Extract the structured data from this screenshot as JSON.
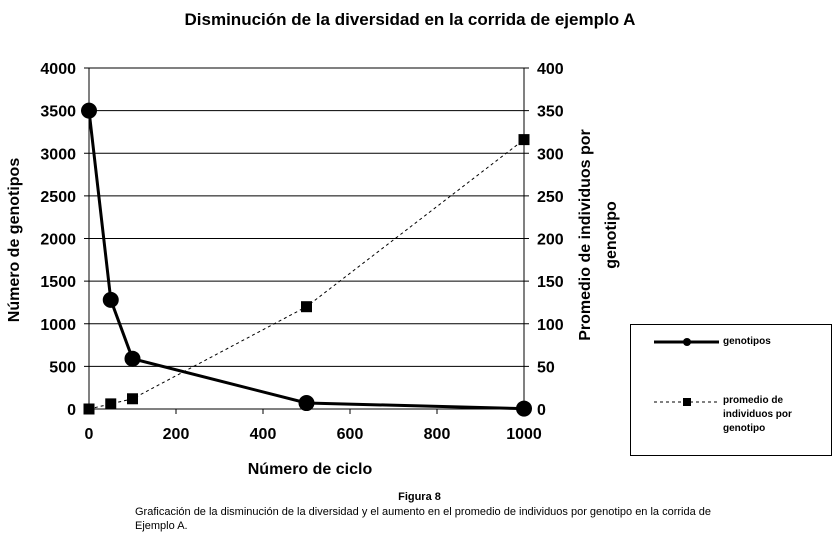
{
  "chart_data": {
    "type": "line",
    "title": "Disminución de la diversidad en la corrida de ejemplo A",
    "xlabel": "Número de ciclo",
    "ylabel_left": "Número de genotipos",
    "ylabel_right": "Promedio de individuos por genotipo",
    "xlim": [
      0,
      1000
    ],
    "ylim_left": [
      0,
      4000
    ],
    "ylim_right": [
      0,
      400
    ],
    "x_ticks": [
      0,
      200,
      400,
      600,
      800,
      1000
    ],
    "y_ticks_left": [
      0,
      500,
      1000,
      1500,
      2000,
      2500,
      3000,
      3500,
      4000
    ],
    "y_ticks_right": [
      0,
      50,
      100,
      150,
      200,
      250,
      300,
      350,
      400
    ],
    "grid": "horizontal",
    "legend_position": "right",
    "series": [
      {
        "name": "genotipos",
        "axis": "left",
        "style": "solid-circle",
        "x": [
          0,
          50,
          100,
          500,
          1000
        ],
        "y": [
          3500,
          1280,
          590,
          70,
          5
        ]
      },
      {
        "name": "promedio de individuos por genotipo",
        "axis": "right",
        "style": "dotted-square",
        "x": [
          0,
          50,
          100,
          500,
          1000
        ],
        "y": [
          0,
          6,
          12,
          120,
          316
        ]
      }
    ]
  },
  "caption": {
    "figure": "Figura 8",
    "text": "Graficación de la disminución de la diversidad y el aumento en el promedio de individuos por genotipo en la corrida de Ejemplo A."
  },
  "legend": {
    "genotipos": "genotipos",
    "promedio_lines": [
      "promedio de",
      "individuos por",
      "genotipo"
    ]
  },
  "axis_titles": {
    "right_lines": [
      "Promedio de individuos por",
      "genotipo"
    ]
  }
}
